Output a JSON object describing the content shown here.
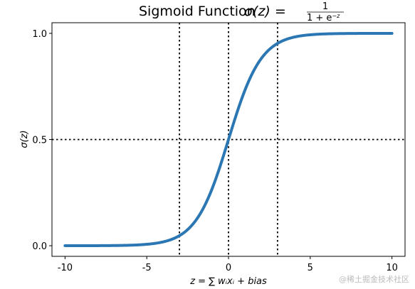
{
  "chart_data": {
    "type": "line",
    "title": "Sigmoid Function σ(z) = 1 / (1 + e^−z)",
    "title_prefix": "Sigmoid Function ",
    "title_math": "σ(z) =",
    "title_numerator": "1",
    "title_denominator": "1 + e",
    "title_denominator_exp": "−z",
    "xlabel": "z = ∑ wᵢxᵢ + bias",
    "ylabel": "σ(z)",
    "xlim": [
      -10.8,
      10.8
    ],
    "ylim": [
      -0.05,
      1.05
    ],
    "x_ticks": [
      -10,
      -5,
      0,
      5,
      10
    ],
    "x_tick_labels": [
      "-10",
      "-5",
      "0",
      "5",
      "10"
    ],
    "y_ticks": [
      0.0,
      0.5,
      1.0
    ],
    "y_tick_labels": [
      "0.0",
      "0.5",
      "1.0"
    ],
    "grid": false,
    "reference_lines": {
      "vertical_x": [
        -3,
        0,
        3
      ],
      "horizontal_y": [
        0.5
      ],
      "style": "dotted",
      "color": "#000000"
    },
    "series": [
      {
        "function": "1/(1+exp(-z))",
        "x_range": [
          -10,
          10
        ],
        "samples": [
          {
            "x": -10,
            "y": 0.0
          },
          {
            "x": -8,
            "y": 0.0003
          },
          {
            "x": -6,
            "y": 0.0025
          },
          {
            "x": -4,
            "y": 0.018
          },
          {
            "x": -3,
            "y": 0.0474
          },
          {
            "x": -2,
            "y": 0.1192
          },
          {
            "x": -1,
            "y": 0.2689
          },
          {
            "x": 0,
            "y": 0.5
          },
          {
            "x": 1,
            "y": 0.7311
          },
          {
            "x": 2,
            "y": 0.8808
          },
          {
            "x": 3,
            "y": 0.9526
          },
          {
            "x": 4,
            "y": 0.982
          },
          {
            "x": 6,
            "y": 0.9975
          },
          {
            "x": 8,
            "y": 0.9997
          },
          {
            "x": 10,
            "y": 1.0
          }
        ],
        "color": "#2a77b4"
      }
    ]
  },
  "watermark": "@稀土掘金技术社区"
}
